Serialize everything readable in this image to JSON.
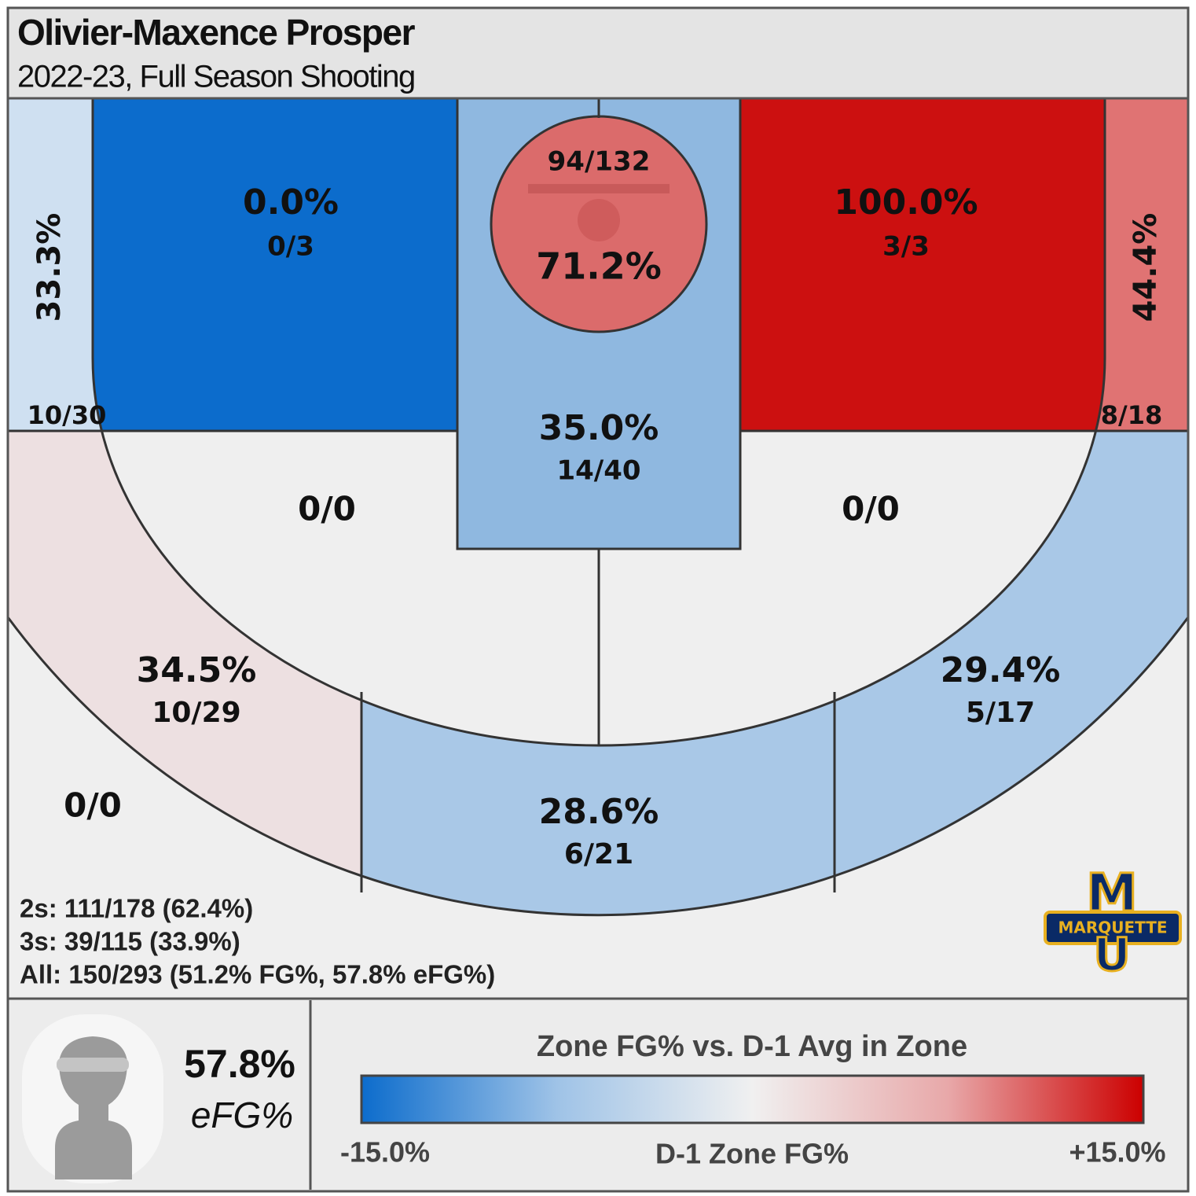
{
  "header": {
    "title": "Olivier-Maxence Prosper",
    "subtitle": "2022-23, Full Season Shooting"
  },
  "zones": {
    "left_corner": {
      "pct": "33.3%",
      "shots": "10/30",
      "color": "#cfe0f1"
    },
    "left_baseline": {
      "pct": "0.0%",
      "shots": "0/3",
      "color": "#0c6ccc"
    },
    "restricted": {
      "pct": "71.2%",
      "shots": "94/132",
      "color": "#db6b6b"
    },
    "right_baseline": {
      "pct": "100.0%",
      "shots": "3/3",
      "color": "#cc1010"
    },
    "right_corner": {
      "pct": "44.4%",
      "shots": "8/18",
      "color": "#e07373"
    },
    "paint": {
      "pct": "35.0%",
      "shots": "14/40",
      "color": "#8fb8e0"
    },
    "left_elbow": {
      "shots": "0/0",
      "color": "#efefef"
    },
    "right_elbow": {
      "shots": "0/0",
      "color": "#efefef"
    },
    "left_wing": {
      "pct": "34.5%",
      "shots": "10/29",
      "color": "#ede0e1"
    },
    "top": {
      "pct": "28.6%",
      "shots": "6/21",
      "color": "#a9c8e7"
    },
    "right_wing": {
      "pct": "29.4%",
      "shots": "5/17",
      "color": "#a9c8e7"
    },
    "deep": {
      "shots": "0/0",
      "color": "#efefef"
    }
  },
  "totals": [
    "2s: 111/178 (62.4%)",
    "3s: 39/115 (33.9%)",
    "All: 150/293 (51.2% FG%, 57.8% eFG%)"
  ],
  "logo": {
    "top": "M",
    "band": "MARQUETTE",
    "bottom": "U"
  },
  "efg": {
    "value": "57.8%",
    "label": "eFG%"
  },
  "legend": {
    "title": "Zone FG% vs. D-1 Avg in Zone",
    "low": "-15.0%",
    "middle": "D-1 Zone FG%",
    "high": "+15.0%",
    "colors": [
      "#0c6ccc",
      "#9fc3e7",
      "#f0f0f0",
      "#e8a8a9",
      "#cc0000"
    ]
  }
}
